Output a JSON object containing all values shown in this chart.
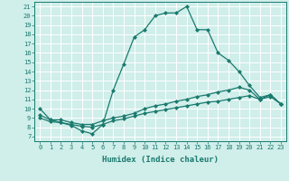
{
  "title": "",
  "xlabel": "Humidex (Indice chaleur)",
  "xlim": [
    -0.5,
    23.5
  ],
  "ylim": [
    6.5,
    21.5
  ],
  "xticks": [
    0,
    1,
    2,
    3,
    4,
    5,
    6,
    7,
    8,
    9,
    10,
    11,
    12,
    13,
    14,
    15,
    16,
    17,
    18,
    19,
    20,
    21,
    22,
    23
  ],
  "yticks": [
    7,
    8,
    9,
    10,
    11,
    12,
    13,
    14,
    15,
    16,
    17,
    18,
    19,
    20,
    21
  ],
  "bg_color": "#d0eeea",
  "line_color": "#1a7a6e",
  "line1_x": [
    0,
    1,
    2,
    3,
    4,
    5,
    6,
    7,
    8,
    9,
    10,
    11,
    12,
    13,
    14,
    15,
    16,
    17,
    18,
    19,
    20,
    21,
    22,
    23
  ],
  "line1_y": [
    10.0,
    8.8,
    8.5,
    8.2,
    7.6,
    7.3,
    8.3,
    12.0,
    14.8,
    17.7,
    18.5,
    20.0,
    20.3,
    20.3,
    21.0,
    18.5,
    18.5,
    16.0,
    15.2,
    14.0,
    12.5,
    11.2,
    11.5,
    10.5
  ],
  "line2_x": [
    0,
    1,
    2,
    3,
    4,
    5,
    6,
    7,
    8,
    9,
    10,
    11,
    12,
    13,
    14,
    15,
    16,
    17,
    18,
    19,
    20,
    21,
    22,
    23
  ],
  "line2_y": [
    9.3,
    8.8,
    8.8,
    8.5,
    8.3,
    8.3,
    8.7,
    9.0,
    9.2,
    9.5,
    10.0,
    10.3,
    10.5,
    10.8,
    11.0,
    11.3,
    11.5,
    11.8,
    12.0,
    12.3,
    12.0,
    11.0,
    11.5,
    10.5
  ],
  "line3_x": [
    0,
    1,
    2,
    3,
    4,
    5,
    6,
    7,
    8,
    9,
    10,
    11,
    12,
    13,
    14,
    15,
    16,
    17,
    18,
    19,
    20,
    21,
    22,
    23
  ],
  "line3_y": [
    9.0,
    8.6,
    8.5,
    8.3,
    8.1,
    8.0,
    8.3,
    8.7,
    8.9,
    9.2,
    9.5,
    9.7,
    9.9,
    10.1,
    10.3,
    10.5,
    10.7,
    10.8,
    11.0,
    11.2,
    11.4,
    11.0,
    11.3,
    10.5
  ],
  "marker": "D",
  "markersize": 2.0,
  "linewidth": 0.9,
  "tick_fontsize": 5.0,
  "xlabel_fontsize": 6.5
}
